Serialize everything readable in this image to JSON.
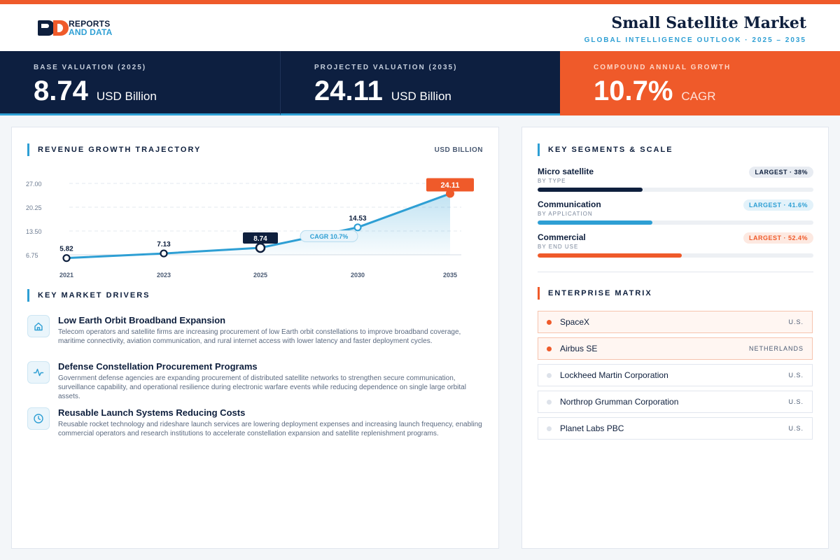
{
  "header": {
    "logo_line1": "REPORTS",
    "logo_line2": "AND DATA",
    "title": "Small Satellite Market",
    "subtitle": "GLOBAL INTELLIGENCE OUTLOOK  ·  2025 – 2035"
  },
  "kpis": [
    {
      "label": "BASE VALUATION (2025)",
      "value": "8.74",
      "unit": "USD Billion"
    },
    {
      "label": "PROJECTED VALUATION (2035)",
      "value": "24.11",
      "unit": "USD Billion"
    },
    {
      "label": "COMPOUND ANNUAL GROWTH",
      "value": "10.7%",
      "unit": "CAGR"
    }
  ],
  "chart_section": {
    "title": "REVENUE GROWTH TRAJECTORY",
    "unit": "USD BILLION"
  },
  "chart_data": {
    "type": "line",
    "x": [
      "2021",
      "2023",
      "2025",
      "2030",
      "2035"
    ],
    "values": [
      5.82,
      7.13,
      8.74,
      14.53,
      24.11
    ],
    "labels": [
      "5.82",
      "7.13",
      "8.74",
      "14.53",
      "24.11"
    ],
    "y_ticks": [
      "6.75",
      "13.50",
      "20.25",
      "27.00"
    ],
    "ylim": [
      6.75,
      27.0
    ],
    "annotation": "CAGR 10.7%",
    "highlight": {
      "base": "8.74",
      "projected": "24.11"
    },
    "grid": true,
    "area_fill": true,
    "colors": {
      "line": "#2e9fd4",
      "highlight": "#ef5a2a",
      "base": "#0e1f3d"
    }
  },
  "drivers_section": {
    "title": "KEY MARKET DRIVERS",
    "items": [
      {
        "icon": "home-icon",
        "title": "Low Earth Orbit Broadband Expansion",
        "desc": "Telecom operators and satellite firms are increasing procurement of low Earth orbit constellations to improve broadband coverage, maritime connectivity, aviation communication, and rural internet access with lower latency and faster deployment cycles."
      },
      {
        "icon": "pulse-icon",
        "title": "Defense Constellation Procurement Programs",
        "desc": "Government defense agencies are expanding procurement of distributed satellite networks to strengthen secure communication, surveillance capability, and operational resilience during electronic warfare events while reducing dependence on single large orbital assets."
      },
      {
        "icon": "clock-icon",
        "title": "Reusable Launch Systems Reducing Costs",
        "desc": "Reusable rocket technology and rideshare launch services are lowering deployment expenses and increasing launch frequency, enabling commercial operators and research institutions to accelerate constellation expansion and satellite replenishment programs."
      }
    ]
  },
  "segments_section": {
    "title": "KEY SEGMENTS & SCALE",
    "items": [
      {
        "name": "Micro satellite",
        "sub": "BY TYPE",
        "badge": "LARGEST · 38%",
        "share": 38,
        "color": "#0e1f3d"
      },
      {
        "name": "Communication",
        "sub": "BY APPLICATION",
        "badge": "LARGEST · 41.6%",
        "share": 41.6,
        "color": "#2e9fd4"
      },
      {
        "name": "Commercial",
        "sub": "BY END USE",
        "badge": "LARGEST · 52.4%",
        "share": 52.4,
        "color": "#ef5a2a"
      }
    ]
  },
  "matrix_section": {
    "title": "ENTERPRISE MATRIX",
    "items": [
      {
        "name": "SpaceX",
        "country": "U.S.",
        "highlight": true
      },
      {
        "name": "Airbus SE",
        "country": "NETHERLANDS",
        "highlight": true
      },
      {
        "name": "Lockheed Martin Corporation",
        "country": "U.S.",
        "highlight": false
      },
      {
        "name": "Northrop Grumman Corporation",
        "country": "U.S.",
        "highlight": false
      },
      {
        "name": "Planet Labs PBC",
        "country": "U.S.",
        "highlight": false
      }
    ]
  }
}
